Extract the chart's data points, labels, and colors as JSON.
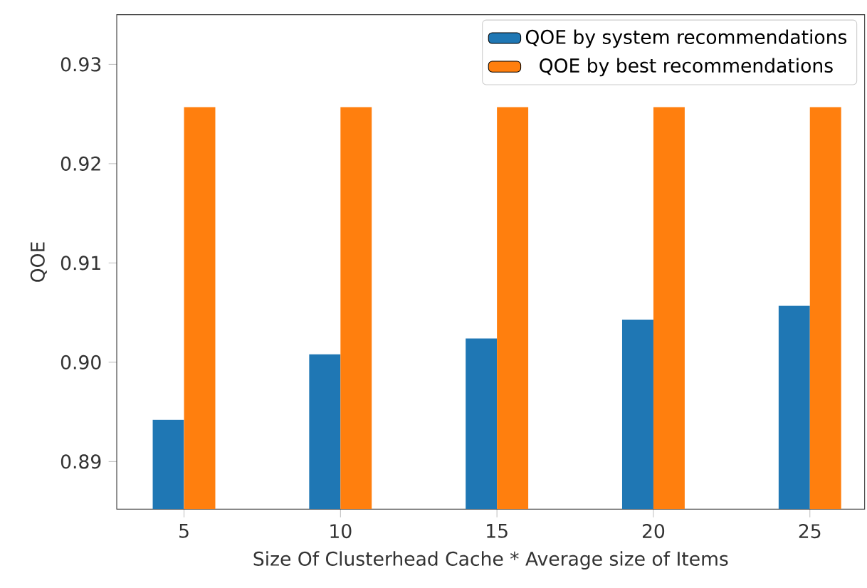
{
  "chart_data": {
    "type": "bar",
    "xlabel": "Size Of Clusterhead Cache * Average size of Items",
    "ylabel": "QOE",
    "categories": [
      "5",
      "10",
      "15",
      "20",
      "25"
    ],
    "series": [
      {
        "name": "QOE by system recommendations",
        "color": "#1f77b4",
        "values": [
          0.8942,
          0.9008,
          0.9024,
          0.9043,
          0.9057
        ]
      },
      {
        "name": "QOE by best recommendations",
        "color": "#ff7f0e",
        "values": [
          0.9257,
          0.9257,
          0.9257,
          0.9257,
          0.9257
        ]
      }
    ],
    "ylim": [
      0.8852,
      0.935
    ],
    "yticks": [
      {
        "value": 0.89,
        "label": "0.89"
      },
      {
        "value": 0.9,
        "label": "0.90"
      },
      {
        "value": 0.91,
        "label": "0.91"
      },
      {
        "value": 0.92,
        "label": "0.92"
      },
      {
        "value": 0.93,
        "label": "0.93"
      }
    ],
    "legend": "top right",
    "grid": false
  }
}
